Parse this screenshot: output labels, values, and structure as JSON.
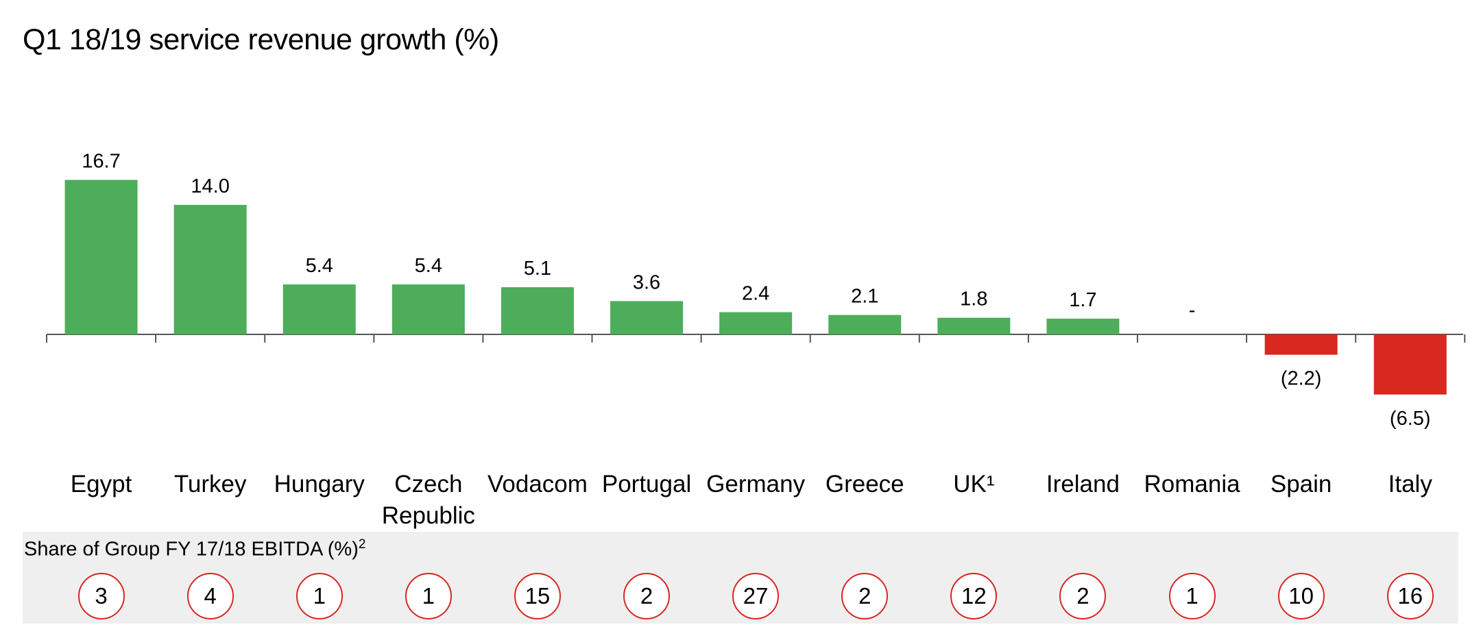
{
  "chart_data": {
    "type": "bar",
    "title": "Q1 18/19 service revenue growth (%)",
    "categories": [
      "Egypt",
      "Turkey",
      "Hungary",
      "Czech Republic",
      "Vodacom",
      "Portugal",
      "Germany",
      "Greece",
      "UK¹",
      "Ireland",
      "Romania",
      "Spain",
      "Italy"
    ],
    "category_lines": [
      [
        "Egypt"
      ],
      [
        "Turkey"
      ],
      [
        "Hungary"
      ],
      [
        "Czech",
        "Republic"
      ],
      [
        "Vodacom"
      ],
      [
        "Portugal"
      ],
      [
        "Germany"
      ],
      [
        "Greece"
      ],
      [
        "UK¹"
      ],
      [
        "Ireland"
      ],
      [
        "Romania"
      ],
      [
        "Spain"
      ],
      [
        "Italy"
      ]
    ],
    "values": [
      16.7,
      14.0,
      5.4,
      5.4,
      5.1,
      3.6,
      2.4,
      2.1,
      1.8,
      1.7,
      0,
      -2.2,
      -6.5
    ],
    "data_labels": [
      "16.7",
      "14.0",
      "5.4",
      "5.4",
      "5.1",
      "3.6",
      "2.4",
      "2.1",
      "1.8",
      "1.7",
      "-",
      "(2.2)",
      "(6.5)"
    ],
    "xlabel": "",
    "ylabel": "",
    "ylim": [
      -6.5,
      16.7
    ],
    "grid": false,
    "positive_color": "#4dad5b",
    "negative_color": "#d8281f"
  },
  "share": {
    "title": "Share of Group FY 17/18 EBITDA (%)",
    "title_superscript": "2",
    "values": [
      "3",
      "4",
      "1",
      "1",
      "15",
      "2",
      "27",
      "2",
      "12",
      "2",
      "1",
      "10",
      "16"
    ],
    "circle_color": "#d8241f"
  }
}
